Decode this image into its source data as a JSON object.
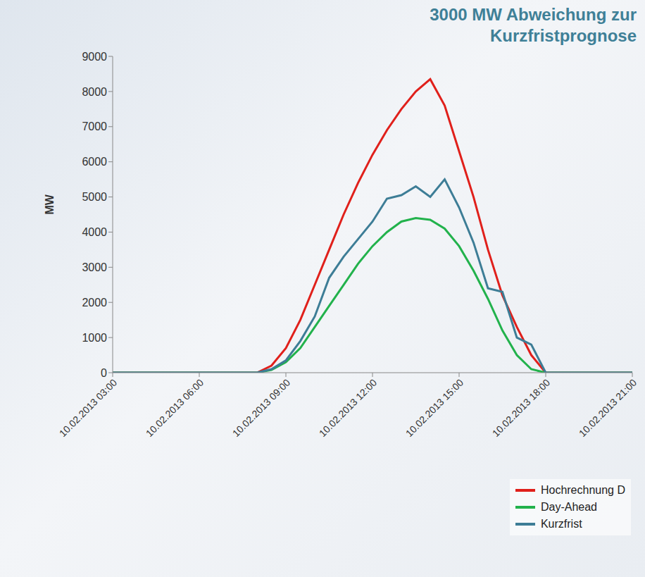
{
  "chart_data": {
    "type": "line",
    "title": "3000 MW Abweichung zur Kurzfristprognose",
    "y_label": "MW",
    "x": [
      3,
      4,
      5,
      6,
      7,
      8,
      8.5,
      9,
      9.5,
      10,
      10.5,
      11,
      11.5,
      12,
      12.5,
      13,
      13.5,
      14,
      14.5,
      15,
      15.5,
      16,
      16.5,
      17,
      17.5,
      18,
      19,
      20,
      21
    ],
    "xlim": [
      3,
      21
    ],
    "xticks": [
      {
        "value": 3,
        "label": "10.02.2013 03:00"
      },
      {
        "value": 6,
        "label": "10.02.2013 06:00"
      },
      {
        "value": 9,
        "label": "10.02.2013 09:00"
      },
      {
        "value": 12,
        "label": "10.02.2013 12:00"
      },
      {
        "value": 15,
        "label": "10.02.2013 15:00"
      },
      {
        "value": 18,
        "label": "10.02.2013 18:00"
      },
      {
        "value": 21,
        "label": "10.02.2013 21:00"
      }
    ],
    "ylim": [
      0,
      9000
    ],
    "yticks": [
      0,
      1000,
      2000,
      3000,
      4000,
      5000,
      6000,
      7000,
      8000,
      9000
    ],
    "grid": false,
    "legend": "bottom right",
    "series": [
      {
        "name": "Hochrechnung D",
        "color": "#e0201b",
        "values": [
          0,
          0,
          0,
          0,
          0,
          0,
          200,
          700,
          1500,
          2500,
          3500,
          4500,
          5400,
          6200,
          6900,
          7500,
          8000,
          8350,
          7600,
          6300,
          5000,
          3500,
          2200,
          1300,
          500,
          0,
          0,
          0,
          0
        ]
      },
      {
        "name": "Day-Ahead",
        "color": "#22b24c",
        "values": [
          0,
          0,
          0,
          0,
          0,
          0,
          80,
          300,
          700,
          1300,
          1900,
          2500,
          3100,
          3600,
          4000,
          4300,
          4400,
          4350,
          4100,
          3600,
          2900,
          2100,
          1200,
          500,
          100,
          0,
          0,
          0,
          0
        ]
      },
      {
        "name": "Kurzfrist",
        "color": "#3d7d96",
        "values": [
          0,
          0,
          0,
          0,
          0,
          0,
          100,
          350,
          900,
          1600,
          2700,
          3300,
          3800,
          4300,
          4950,
          5050,
          5300,
          5000,
          5500,
          4700,
          3700,
          2400,
          2300,
          1000,
          800,
          0,
          0,
          0,
          0
        ]
      }
    ]
  }
}
